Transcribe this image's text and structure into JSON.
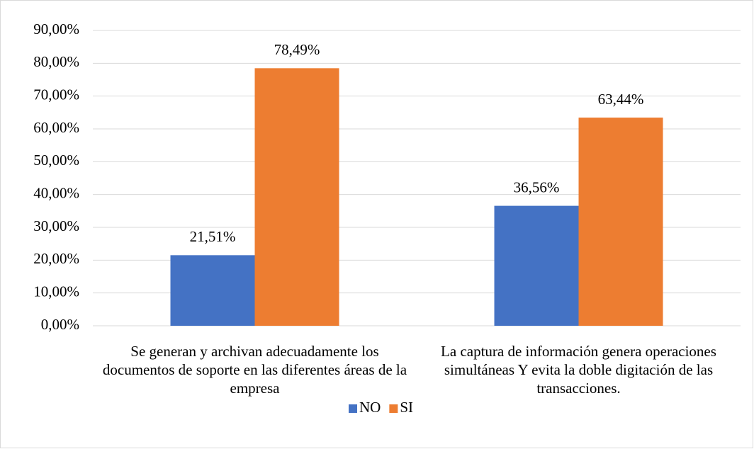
{
  "chart_data": {
    "type": "bar",
    "categories": [
      "Se generan y archivan adecuadamente los documentos de soporte en las diferentes áreas de la empresa",
      "La captura de información genera operaciones simultáneas Y evita la doble digitación de las transacciones."
    ],
    "series": [
      {
        "name": "NO",
        "color": "#4472c4",
        "values": [
          21.51,
          36.56
        ],
        "value_labels": [
          "21,51%",
          "36,56%"
        ]
      },
      {
        "name": "SI",
        "color": "#ed7d31",
        "values": [
          78.49,
          63.44
        ],
        "value_labels": [
          "78,49%",
          "63,44%"
        ]
      }
    ],
    "ylim": [
      0,
      90
    ],
    "yticks": [
      {
        "value": 0,
        "label": "0,00%"
      },
      {
        "value": 10,
        "label": "10,00%"
      },
      {
        "value": 20,
        "label": "20,00%"
      },
      {
        "value": 30,
        "label": "30,00%"
      },
      {
        "value": 40,
        "label": "40,00%"
      },
      {
        "value": 50,
        "label": "50,00%"
      },
      {
        "value": 60,
        "label": "60,00%"
      },
      {
        "value": 70,
        "label": "70,00%"
      },
      {
        "value": 80,
        "label": "80,00%"
      },
      {
        "value": 90,
        "label": "90,00%"
      }
    ],
    "grid": true,
    "legend": "bottom"
  }
}
